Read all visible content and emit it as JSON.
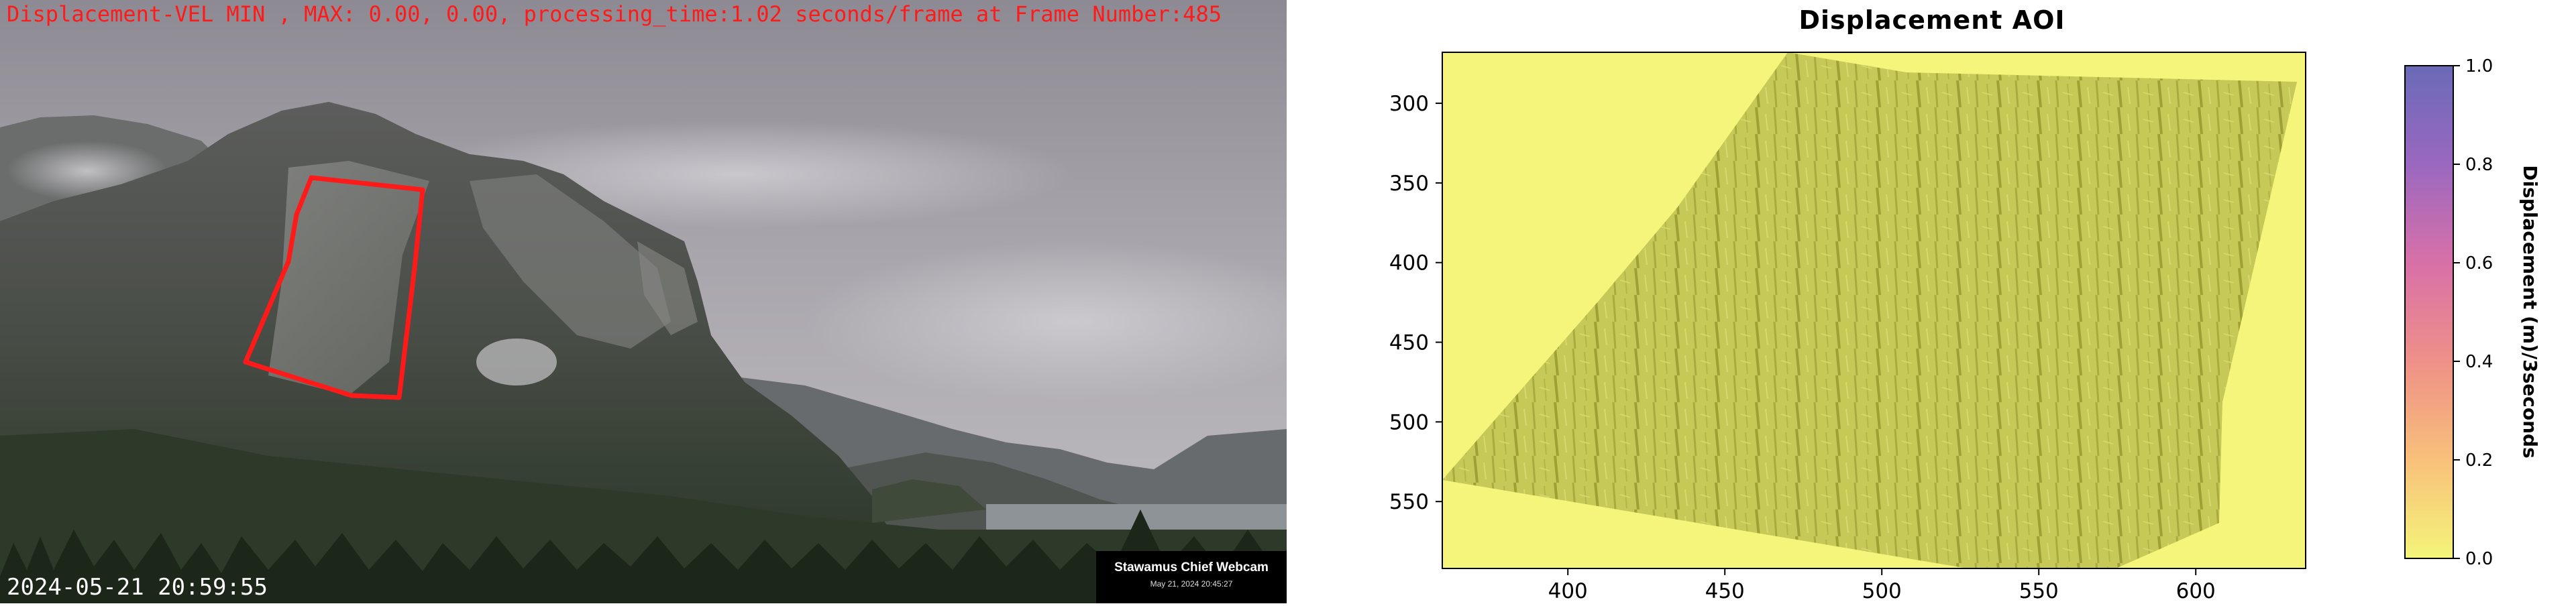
{
  "webcam": {
    "status_line": "Displacement-VEL MIN , MAX: 0.00, 0.00, processing_time:1.02 seconds/frame at Frame Number:485",
    "timestamp": "2024-05-21 20:59:55",
    "camera_name": "Stawamus Chief Webcam",
    "camera_date": "May 21, 2024 20:45:27",
    "roi_color": "#ff1a1a"
  },
  "chart_data": {
    "type": "heatmap",
    "title": "Displacement AOI",
    "xlabel": "",
    "ylabel": "",
    "x_ticks": [
      400,
      450,
      500,
      550,
      600
    ],
    "y_ticks": [
      300,
      350,
      400,
      450,
      500,
      550
    ],
    "xlim": [
      360,
      635
    ],
    "ylim": [
      592,
      268
    ],
    "values_summary": {
      "min": 0.0,
      "max": 0.0
    },
    "colorbar": {
      "label": "Displacement (m)/3seconds",
      "ticks": [
        "0.0",
        "0.2",
        "0.4",
        "0.6",
        "0.8",
        "1.0"
      ],
      "range": [
        0.0,
        1.0
      ],
      "colormap_colors": [
        "#f4f57a",
        "#f8c07a",
        "#ef9088",
        "#d870a8",
        "#9a68c0",
        "#6a6ab8"
      ]
    }
  }
}
